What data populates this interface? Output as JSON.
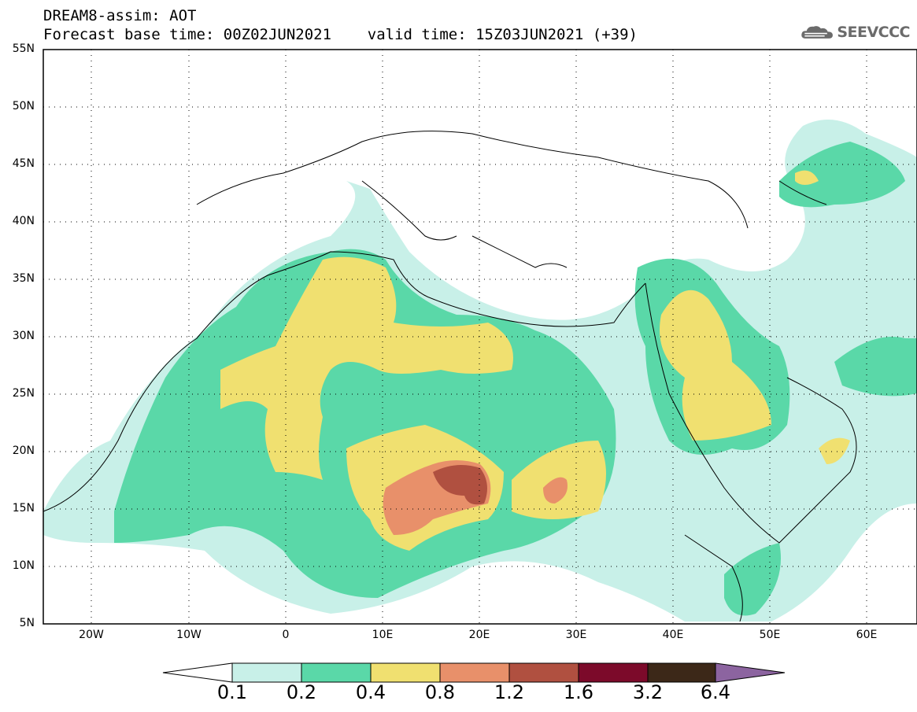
{
  "header": {
    "title_line1": "DREAM8-assim: AOT",
    "title_line2": "Forecast base time: 00Z02JUN2021    valid time: 15Z03JUN2021 (+39)",
    "logo_text": "SEEVCCC",
    "logo_icon": "cloud-icon"
  },
  "map": {
    "lon_range": [
      -25,
      65
    ],
    "lat_range": [
      5,
      55
    ],
    "lat_labels": [
      "55N",
      "50N",
      "45N",
      "40N",
      "35N",
      "30N",
      "25N",
      "20N",
      "15N",
      "10N",
      "5N"
    ],
    "lon_labels": [
      "20W",
      "10W",
      "0",
      "10E",
      "20E",
      "30E",
      "40E",
      "50E",
      "60E"
    ]
  },
  "colorbar": {
    "labels": [
      "0.1",
      "0.2",
      "0.4",
      "0.8",
      "1.2",
      "1.6",
      "3.2",
      "6.4"
    ],
    "colors": [
      "#c8f0e8",
      "#5ad8a8",
      "#f0e070",
      "#e8906a",
      "#b05040",
      "#7c0a2a",
      "#3c2818",
      "#8c64a0"
    ]
  }
}
